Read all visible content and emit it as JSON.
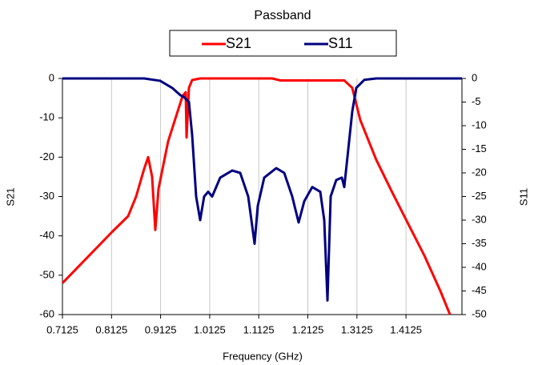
{
  "chart_data": {
    "type": "line",
    "title": "Passband",
    "xlabel": "Frequency (GHz)",
    "ylabel": "S21",
    "y2label": "S11",
    "xlim": [
      0.7125,
      1.5265
    ],
    "xticks": [
      0.7125,
      0.8125,
      0.9125,
      1.0125,
      1.1125,
      1.2125,
      1.3125,
      1.4125
    ],
    "ylim": [
      -60,
      0
    ],
    "yticks": [
      0,
      -10,
      -20,
      -30,
      -40,
      -50,
      -60
    ],
    "y2lim": [
      -50,
      0
    ],
    "y2ticks": [
      0,
      -5,
      -10,
      -15,
      -20,
      -25,
      -30,
      -35,
      -40,
      -45,
      -50
    ],
    "grid": "x",
    "legend": "top",
    "series": [
      {
        "name": "S21",
        "color": "#ff0000",
        "x": [
          0.7125,
          0.8136,
          0.8463,
          0.8626,
          0.8789,
          0.8871,
          0.8952,
          0.9017,
          0.9083,
          0.9278,
          0.9441,
          0.9572,
          0.9637,
          0.9654,
          0.9702,
          0.9768,
          0.9931,
          1.1399,
          1.1562,
          1.2867,
          1.303,
          1.3194,
          1.352,
          1.3846,
          1.4172,
          1.4499,
          1.4825,
          1.5021
        ],
        "values": [
          -52,
          -39,
          -35,
          -30,
          -23,
          -20,
          -25,
          -38.5,
          -28,
          -16,
          -9.6,
          -4.5,
          -3.5,
          -15,
          -2.4,
          -0.4,
          0,
          0,
          -0.5,
          -0.5,
          -2.4,
          -10.6,
          -20.7,
          -29,
          -37,
          -45,
          -54,
          -60
        ]
      },
      {
        "name": "S11",
        "color": "#000080",
        "axis": "y2",
        "x": [
          0.7125,
          0.8789,
          0.9115,
          0.936,
          0.9523,
          0.9605,
          0.9702,
          0.9768,
          0.9849,
          0.9931,
          1.0012,
          1.0094,
          1.0176,
          1.0339,
          1.0584,
          1.0747,
          1.091,
          1.104,
          1.1105,
          1.1236,
          1.1481,
          1.1644,
          1.1807,
          1.1937,
          1.2052,
          1.2215,
          1.2378,
          1.2459,
          1.2525,
          1.259,
          1.2704,
          1.2818,
          1.2867,
          1.2949,
          1.303,
          1.3112,
          1.3275,
          1.352,
          1.5265
        ],
        "values": [
          0,
          0,
          -0.5,
          -2,
          -3.5,
          -4,
          -5,
          -12,
          -25,
          -30,
          -25,
          -24,
          -25,
          -21,
          -19.5,
          -20,
          -25,
          -35,
          -27,
          -21,
          -19,
          -20,
          -25,
          -30.5,
          -26,
          -23,
          -24,
          -30,
          -47,
          -25,
          -21.5,
          -21,
          -23,
          -15,
          -7,
          -2,
          -0.3,
          0,
          0
        ]
      }
    ]
  }
}
